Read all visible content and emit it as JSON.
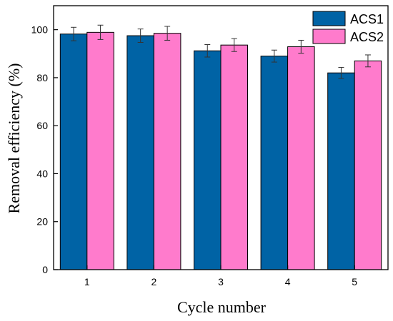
{
  "chart_data": {
    "type": "bar",
    "xlabel": "Cycle number",
    "ylabel": "Removal efficiency (%)",
    "categories": [
      "1",
      "2",
      "3",
      "4",
      "5"
    ],
    "ylim": [
      0,
      110
    ],
    "yticks": [
      "0",
      "20",
      "40",
      "60",
      "80",
      "100"
    ],
    "grid": false,
    "legend_position": "top-right",
    "series": [
      {
        "name": "ACS1",
        "color": "#0063A5",
        "values": [
          98.2,
          97.5,
          91.2,
          89.0,
          82.0
        ],
        "errors": [
          2.8,
          2.8,
          2.6,
          2.5,
          2.3
        ]
      },
      {
        "name": "ACS2",
        "color": "#FF7BCC",
        "values": [
          98.9,
          98.5,
          93.6,
          92.9,
          87.0
        ],
        "errors": [
          3.0,
          2.9,
          2.7,
          2.7,
          2.5
        ]
      }
    ]
  }
}
